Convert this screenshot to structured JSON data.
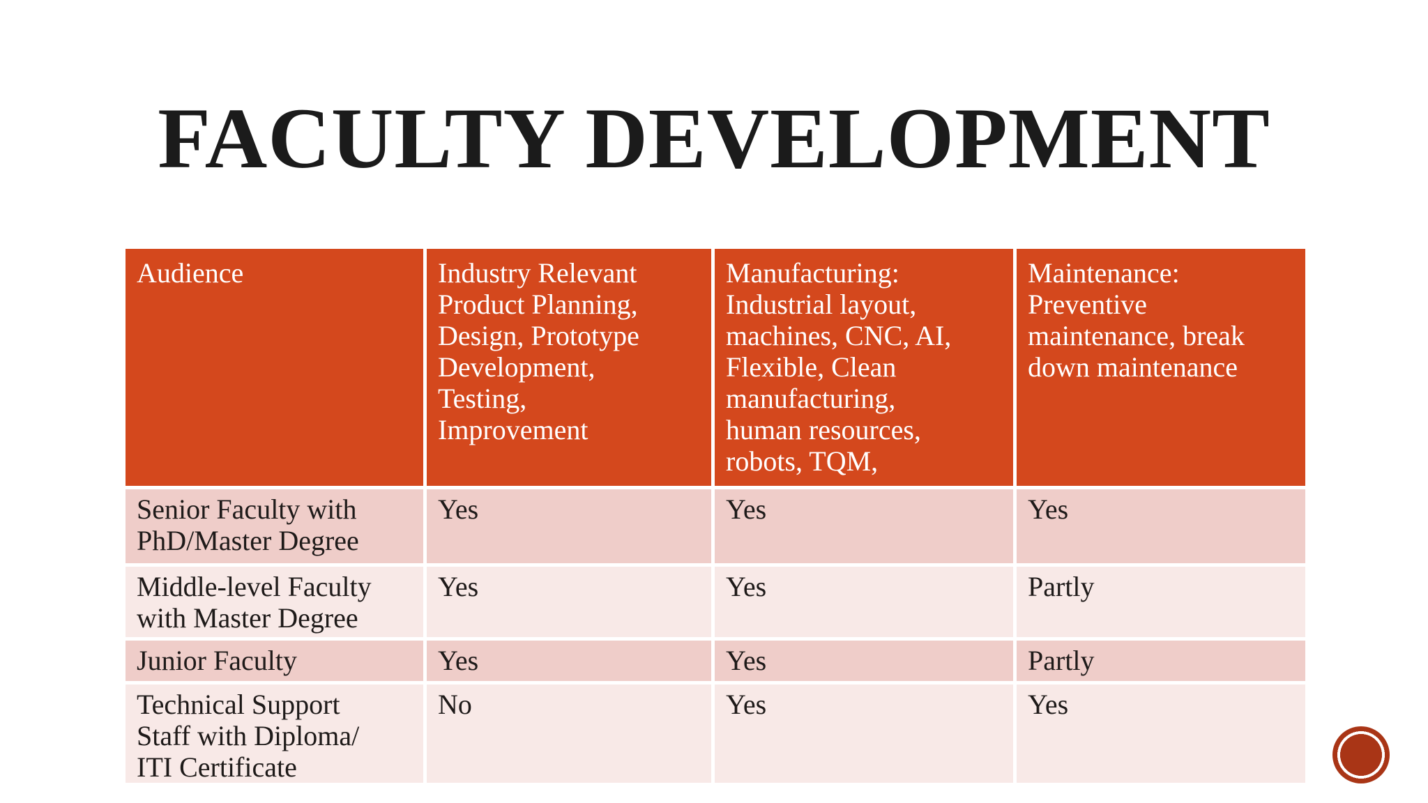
{
  "slide": {
    "title": "FACULTY DEVELOPMENT",
    "background_color": "#ffffff",
    "title_color": "#1b1b1b"
  },
  "colors": {
    "table_header_bg": "#d4481d",
    "table_header_text": "#ffffff",
    "row_alternate_dark": "#efcdc9",
    "row_alternate_light": "#f8e9e7",
    "body_text": "#1e1a19",
    "badge_red": "#a93516",
    "grid_line": "#ffffff"
  },
  "table": {
    "columns": [
      {
        "header": "Audience"
      },
      {
        "header": "Industry Relevant\nProduct Planning,\nDesign, Prototype\nDevelopment,\nTesting,\nImprovement"
      },
      {
        "header": "Manufacturing:\nIndustrial layout,\nmachines,  CNC, AI,\nFlexible, Clean\nmanufacturing,\nhuman resources,\nrobots, TQM,"
      },
      {
        "header": "Maintenance:\nPreventive\nmaintenance, break\ndown maintenance"
      }
    ],
    "rows": [
      {
        "audience": "Senior Faculty with\nPhD/Master Degree",
        "values": [
          "Yes",
          "Yes",
          "Yes"
        ]
      },
      {
        "audience": "Middle-level Faculty\nwith Master Degree",
        "values": [
          "Yes",
          "Yes",
          "Partly"
        ]
      },
      {
        "audience": "Junior Faculty",
        "values": [
          "Yes",
          "Yes",
          "Partly"
        ]
      },
      {
        "audience": "Technical Support\nStaff with Diploma/\nITI Certificate",
        "values": [
          "No",
          "Yes",
          "Yes"
        ]
      }
    ]
  },
  "decorations": {
    "badge_seal": "red circular seal, bottom right"
  }
}
